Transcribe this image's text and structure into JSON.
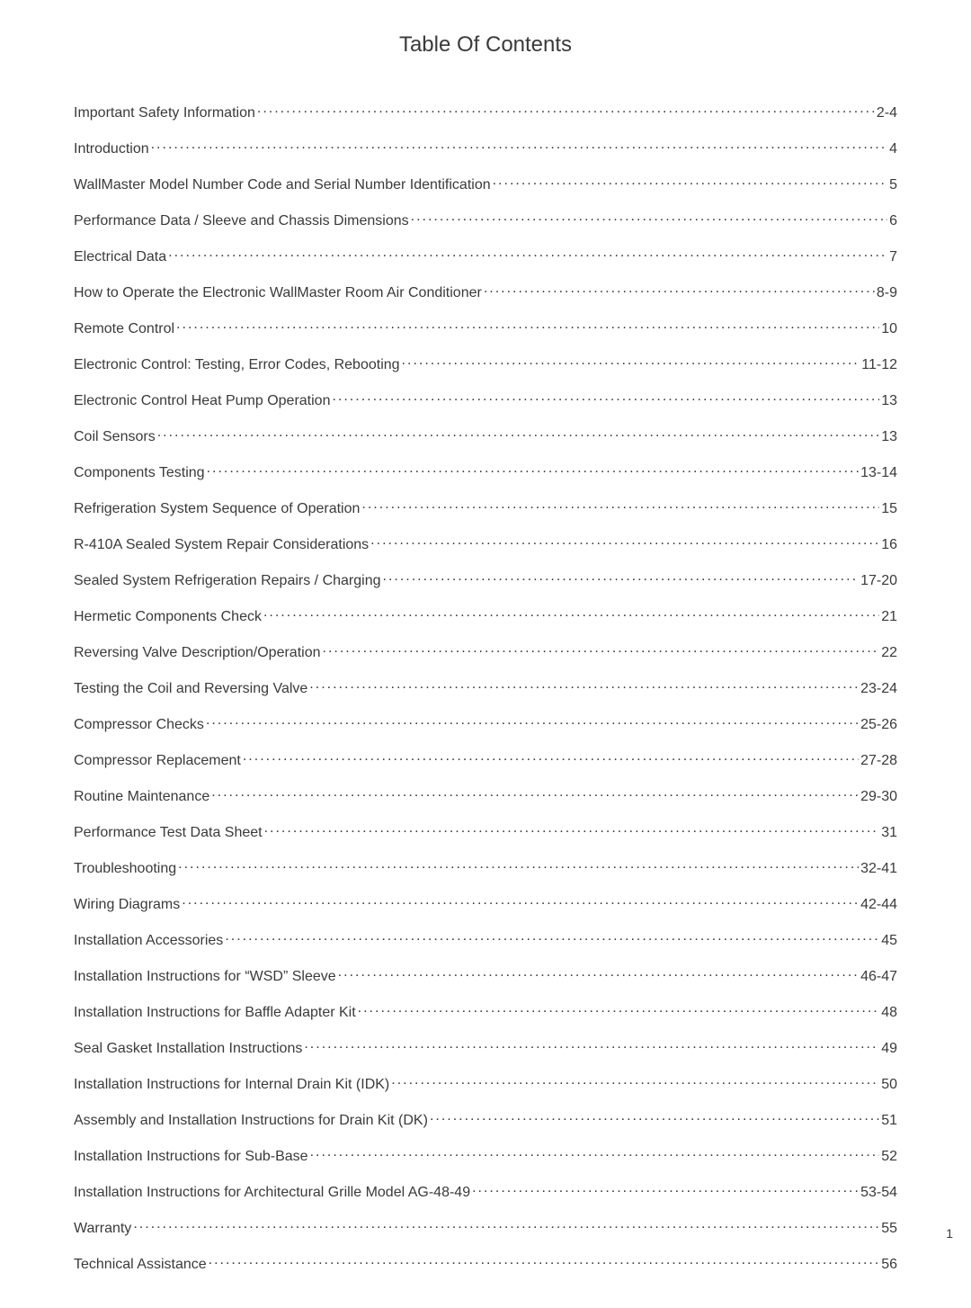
{
  "title": "Table Of Contents",
  "page_number": "1",
  "entries": [
    {
      "label": "Important Safety Information",
      "page": "2-4"
    },
    {
      "label": "Introduction",
      "page": "4"
    },
    {
      "label": "WallMaster Model Number Code and Serial Number Identification",
      "page": "5"
    },
    {
      "label": "Performance Data / Sleeve and Chassis Dimensions",
      "page": "6"
    },
    {
      "label": "Electrical Data",
      "page": "7"
    },
    {
      "label": "How to Operate the Electronic WallMaster Room Air Conditioner",
      "page": "8-9"
    },
    {
      "label": "Remote Control",
      "page": "10"
    },
    {
      "label": "Electronic Control: Testing, Error Codes, Rebooting",
      "page": "11-12"
    },
    {
      "label": "Electronic Control Heat Pump Operation",
      "page": "13"
    },
    {
      "label": "Coil Sensors",
      "page": "13"
    },
    {
      "label": "Components Testing",
      "page": "13-14"
    },
    {
      "label": "Refrigeration System Sequence of Operation",
      "page": "15"
    },
    {
      "label": "R-410A Sealed System Repair Considerations",
      "page": "16"
    },
    {
      "label": "Sealed System Refrigeration Repairs / Charging",
      "page": "17-20"
    },
    {
      "label": "Hermetic Components Check",
      "page": "21"
    },
    {
      "label": "Reversing Valve Description/Operation",
      "page": "22"
    },
    {
      "label": "Testing the Coil and Reversing Valve",
      "page": "23-24"
    },
    {
      "label": "Compressor Checks",
      "page": "25-26"
    },
    {
      "label": "Compressor Replacement",
      "page": "27-28"
    },
    {
      "label": "Routine Maintenance",
      "page": "29-30"
    },
    {
      "label": "Performance Test Data Sheet",
      "page": "31"
    },
    {
      "label": "Troubleshooting",
      "page": "32-41"
    },
    {
      "label": "Wiring Diagrams",
      "page": "42-44"
    },
    {
      "label": "Installation Accessories",
      "page": "45"
    },
    {
      "label": "Installation Instructions for “WSD” Sleeve",
      "page": "46-47"
    },
    {
      "label": "Installation Instructions for Baffle Adapter Kit",
      "page": "48"
    },
    {
      "label": "Seal Gasket Installation Instructions",
      "page": "49"
    },
    {
      "label": "Installation Instructions for Internal Drain Kit (IDK)",
      "page": "50"
    },
    {
      "label": "Assembly and Installation Instructions for Drain Kit (DK)",
      "page": "51"
    },
    {
      "label": "Installation Instructions for Sub-Base",
      "page": "52"
    },
    {
      "label": "Installation Instructions for Architectural Grille Model AG-48-49",
      "page": "53-54"
    },
    {
      "label": "Warranty",
      "page": "55"
    },
    {
      "label": "Technical Assistance",
      "page": "56"
    }
  ],
  "styling": {
    "background_color": "#ffffff",
    "text_color": "#3a3a3a",
    "title_fontsize": 24,
    "entry_fontsize": 16,
    "font_family": "Arial"
  }
}
